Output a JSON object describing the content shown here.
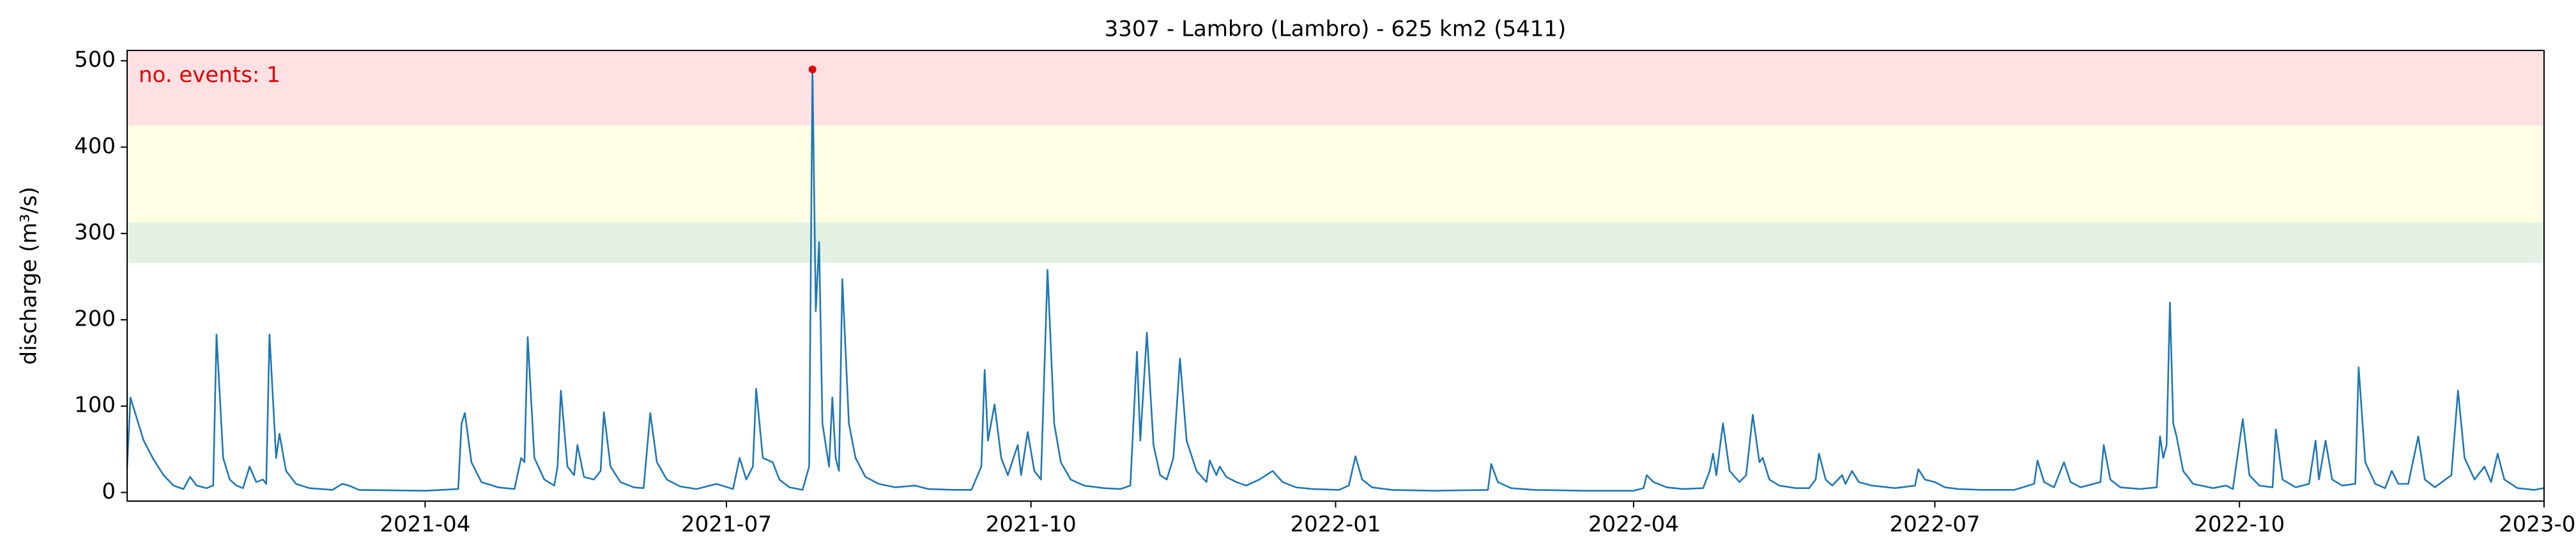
{
  "chart_data": {
    "type": "line",
    "title": "3307 - Lambro (Lambro) - 625 km2 (5411)",
    "y_label": "discharge (m³/s)",
    "annotation": "no. events: 1",
    "annotation_color": "#e00000",
    "color": "#1f77b4",
    "xlim": [
      0,
      730
    ],
    "xticks": [
      {
        "value": 90,
        "label": "2021-04"
      },
      {
        "value": 181,
        "label": "2021-07"
      },
      {
        "value": 273,
        "label": "2021-10"
      },
      {
        "value": 365,
        "label": "2022-01"
      },
      {
        "value": 455,
        "label": "2022-04"
      },
      {
        "value": 546,
        "label": "2022-07"
      },
      {
        "value": 638,
        "label": "2022-10"
      },
      {
        "value": 730,
        "label": "2023-01"
      }
    ],
    "ylim": [
      -10,
      512
    ],
    "yticks": [
      0,
      100,
      200,
      300,
      400,
      500
    ],
    "bands": [
      {
        "from": 266,
        "to": 313,
        "color": "#e3f1e3"
      },
      {
        "from": 313,
        "to": 425,
        "color": "#fffde3"
      },
      {
        "from": 425,
        "to": 512,
        "color": "#ffe1e4"
      }
    ],
    "events": {
      "x": [
        207
      ],
      "values": [
        490
      ],
      "color": "#e00000"
    },
    "x": [
      0,
      1,
      3,
      5,
      8,
      11,
      14,
      17,
      19,
      21,
      24,
      26,
      27,
      29,
      31,
      33,
      35,
      37,
      39,
      41,
      42,
      43,
      45,
      46,
      48,
      51,
      55,
      62,
      65,
      67,
      70,
      90,
      100,
      101,
      102,
      104,
      107,
      112,
      117,
      119,
      120,
      121,
      123,
      126,
      129,
      130,
      131,
      133,
      135,
      136,
      138,
      141,
      143,
      144,
      146,
      149,
      153,
      156,
      158,
      160,
      163,
      167,
      172,
      178,
      183,
      185,
      187,
      189,
      190,
      192,
      195,
      197,
      200,
      204,
      206,
      207,
      208,
      209,
      210,
      212,
      213,
      214,
      215,
      216,
      218,
      220,
      223,
      227,
      232,
      238,
      242,
      250,
      255,
      258,
      259,
      260,
      262,
      264,
      266,
      269,
      270,
      272,
      274,
      276,
      278,
      280,
      282,
      285,
      289,
      295,
      300,
      303,
      305,
      306,
      308,
      310,
      312,
      314,
      316,
      318,
      320,
      323,
      326,
      327,
      329,
      330,
      332,
      335,
      338,
      342,
      346,
      349,
      353,
      358,
      366,
      369,
      371,
      373,
      376,
      382,
      395,
      411,
      412,
      414,
      418,
      425,
      440,
      455,
      458,
      459,
      461,
      465,
      470,
      476,
      478,
      479,
      480,
      482,
      484,
      487,
      489,
      491,
      493,
      494,
      496,
      499,
      504,
      508,
      510,
      511,
      513,
      515,
      518,
      519,
      521,
      523,
      527,
      534,
      540,
      541,
      543,
      546,
      549,
      553,
      560,
      570,
      576,
      577,
      579,
      582,
      585,
      587,
      590,
      596,
      597,
      599,
      602,
      608,
      613,
      614,
      615,
      616,
      617,
      618,
      619,
      621,
      624,
      630,
      634,
      636,
      639,
      641,
      644,
      648,
      649,
      651,
      655,
      659,
      661,
      662,
      664,
      666,
      669,
      673,
      674,
      676,
      679,
      682,
      684,
      686,
      689,
      692,
      694,
      697,
      702,
      704,
      706,
      709,
      712,
      714,
      716,
      718,
      722,
      727,
      730
    ],
    "values": [
      30,
      110,
      85,
      60,
      38,
      20,
      8,
      4,
      18,
      8,
      5,
      8,
      183,
      40,
      15,
      8,
      5,
      30,
      12,
      15,
      10,
      183,
      40,
      68,
      25,
      10,
      5,
      3,
      10,
      8,
      3,
      2,
      4,
      80,
      92,
      35,
      12,
      6,
      4,
      40,
      35,
      180,
      40,
      15,
      8,
      30,
      118,
      30,
      20,
      55,
      18,
      15,
      25,
      93,
      30,
      12,
      6,
      5,
      92,
      35,
      15,
      7,
      4,
      10,
      4,
      40,
      15,
      30,
      120,
      40,
      35,
      15,
      6,
      3,
      30,
      490,
      210,
      290,
      80,
      30,
      110,
      40,
      25,
      247,
      80,
      40,
      18,
      10,
      6,
      8,
      4,
      3,
      3,
      30,
      142,
      60,
      102,
      40,
      20,
      55,
      20,
      70,
      25,
      15,
      258,
      80,
      35,
      15,
      8,
      5,
      4,
      8,
      163,
      60,
      185,
      55,
      20,
      15,
      40,
      155,
      60,
      25,
      12,
      37,
      20,
      30,
      18,
      12,
      8,
      15,
      25,
      12,
      6,
      4,
      3,
      8,
      42,
      15,
      6,
      3,
      2,
      3,
      33,
      12,
      5,
      3,
      2,
      2,
      5,
      20,
      12,
      6,
      4,
      5,
      25,
      45,
      20,
      80,
      25,
      12,
      20,
      90,
      35,
      40,
      15,
      8,
      5,
      5,
      15,
      45,
      15,
      8,
      20,
      10,
      25,
      12,
      8,
      5,
      8,
      27,
      15,
      12,
      6,
      4,
      3,
      3,
      10,
      37,
      12,
      6,
      35,
      12,
      6,
      12,
      55,
      15,
      6,
      4,
      6,
      65,
      40,
      55,
      220,
      80,
      65,
      25,
      10,
      5,
      8,
      4,
      85,
      20,
      8,
      6,
      73,
      15,
      6,
      10,
      60,
      15,
      60,
      15,
      8,
      10,
      145,
      35,
      10,
      5,
      25,
      10,
      10,
      65,
      15,
      6,
      20,
      118,
      40,
      15,
      30,
      12,
      45,
      15,
      5,
      3,
      5
    ]
  }
}
